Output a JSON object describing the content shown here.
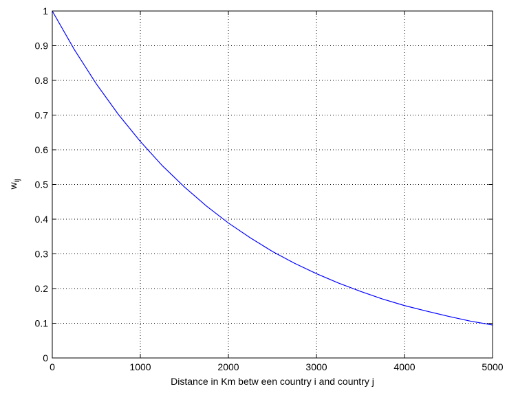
{
  "chart_data": {
    "type": "line",
    "title": "",
    "xlabel": "Distance in Km betw een country i and country j",
    "ylabel": "w",
    "ylabel_subscript": "ij",
    "xlim": [
      0,
      5000
    ],
    "ylim": [
      0,
      1
    ],
    "xticks": [
      "0",
      "1000",
      "2000",
      "3000",
      "4000",
      "5000"
    ],
    "yticks": [
      "0",
      "0.1",
      "0.2",
      "0.3",
      "0.4",
      "0.5",
      "0.6",
      "0.7",
      "0.8",
      "0.9",
      "1"
    ],
    "grid": true,
    "grid_style": "dotted",
    "line_color": "#0000ff",
    "series": [
      {
        "x": [
          0,
          250,
          500,
          750,
          1000,
          1250,
          1500,
          1750,
          2000,
          2250,
          2500,
          2750,
          3000,
          3250,
          3500,
          3750,
          4000,
          4250,
          4500,
          4750,
          5000
        ],
        "values": [
          1.0,
          0.889,
          0.79,
          0.702,
          0.624,
          0.554,
          0.493,
          0.438,
          0.389,
          0.346,
          0.307,
          0.273,
          0.243,
          0.216,
          0.192,
          0.17,
          0.151,
          0.135,
          0.12,
          0.106,
          0.095
        ]
      }
    ]
  }
}
